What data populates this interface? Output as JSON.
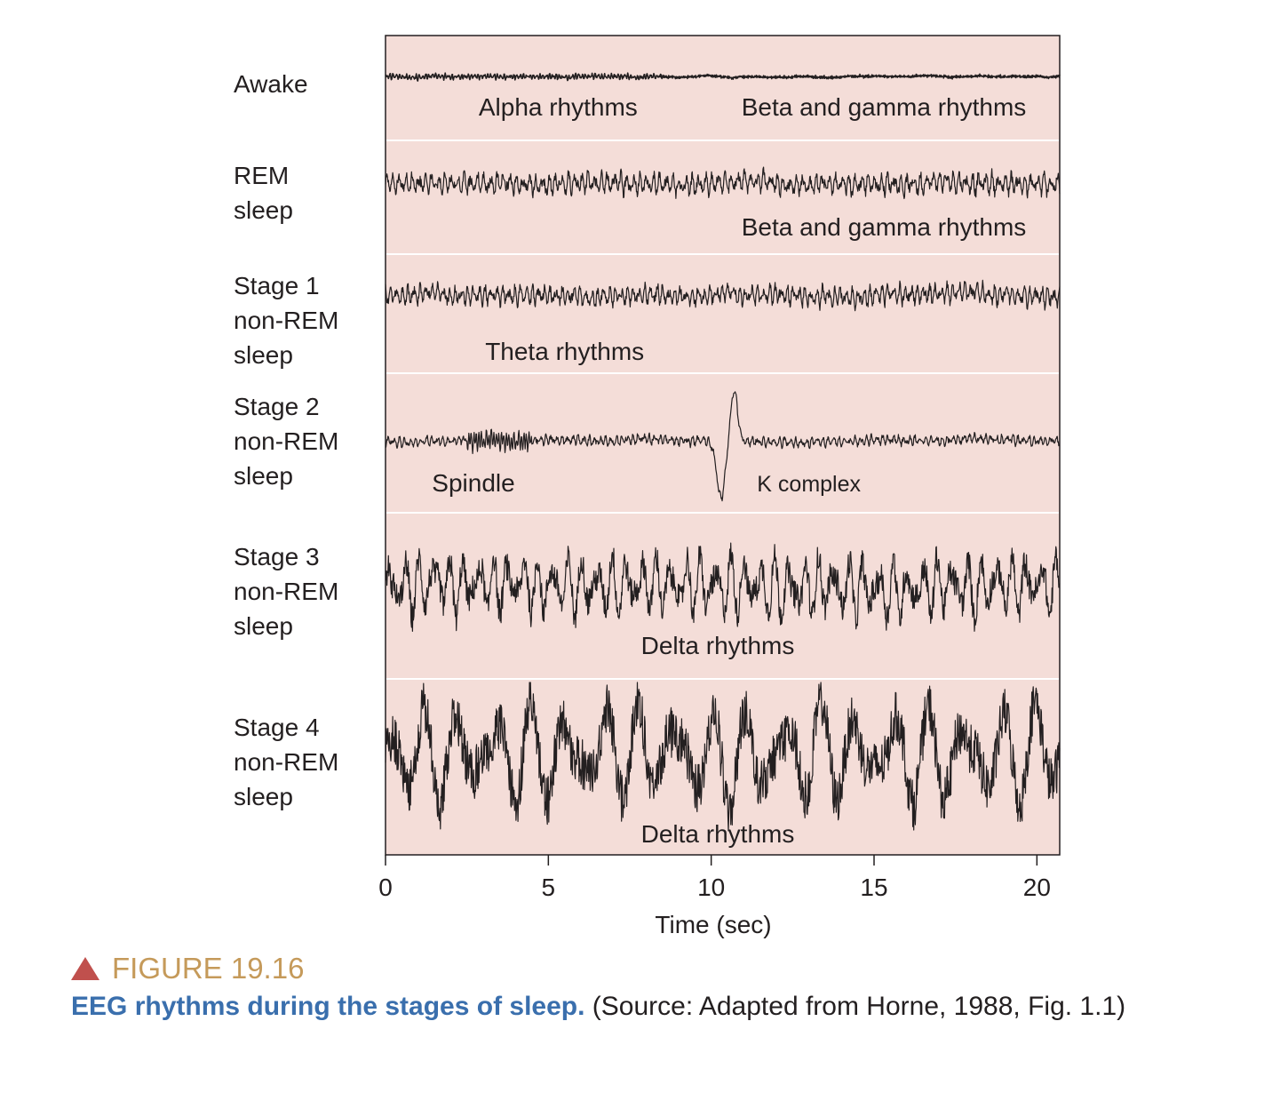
{
  "chart_data": {
    "type": "line",
    "xlabel": "Time (sec)",
    "xlim": [
      0,
      20.7
    ],
    "xticks": [
      0,
      5,
      10,
      15,
      20
    ],
    "background_color": "#f4ddd8",
    "trace_color": "#231f20",
    "series": [
      {
        "name": "Awake",
        "label_lines": [
          "Awake"
        ],
        "annotations": [
          {
            "text": "Alpha rhythms",
            "x": 5.3
          },
          {
            "text": "Beta and gamma rhythms",
            "x": 15.3
          }
        ],
        "segments": [
          {
            "from": 0,
            "to": 8.5,
            "freq_hz": 10,
            "amp": 0.3
          },
          {
            "from": 8.5,
            "to": 20.7,
            "freq_hz": 22,
            "amp": 0.15
          }
        ]
      },
      {
        "name": "REM sleep",
        "label_lines": [
          "REM",
          "sleep"
        ],
        "annotations": [
          {
            "text": "Beta and gamma rhythms",
            "x": 15.3
          }
        ],
        "segments": [
          {
            "from": 0,
            "to": 20.7,
            "freq_hz": 5,
            "amp": 0.55
          }
        ]
      },
      {
        "name": "Stage 1 non-REM sleep",
        "label_lines": [
          "Stage 1",
          "non-REM",
          "sleep"
        ],
        "annotations": [
          {
            "text": "Theta rhythms",
            "x": 5.5
          }
        ],
        "segments": [
          {
            "from": 0,
            "to": 20.7,
            "freq_hz": 5.5,
            "amp": 0.5
          }
        ]
      },
      {
        "name": "Stage 2 non-REM sleep",
        "label_lines": [
          "Stage 2",
          "non-REM",
          "sleep"
        ],
        "annotations": [
          {
            "text": "Spindle",
            "x": 2.7
          },
          {
            "text": "K complex",
            "x": 13.0
          }
        ],
        "segments": [
          {
            "from": 0,
            "to": 20.7,
            "freq_hz": 6,
            "amp": 0.35
          }
        ],
        "events": [
          {
            "type": "spindle",
            "from": 2.5,
            "to": 4.5
          },
          {
            "type": "k-complex",
            "at": 10.4
          }
        ]
      },
      {
        "name": "Stage 3 non-REM sleep",
        "label_lines": [
          "Stage 3",
          "non-REM",
          "sleep"
        ],
        "annotations": [
          {
            "text": "Delta rhythms",
            "x": 10.2
          }
        ],
        "segments": [
          {
            "from": 0,
            "to": 20.7,
            "freq_hz": 2.2,
            "amp": 0.9
          }
        ]
      },
      {
        "name": "Stage 4 non-REM sleep",
        "label_lines": [
          "Stage 4",
          "non-REM",
          "sleep"
        ],
        "annotations": [
          {
            "text": "Delta rhythms",
            "x": 10.2
          }
        ],
        "segments": [
          {
            "from": 0,
            "to": 20.7,
            "freq_hz": 0.9,
            "amp": 1.0
          }
        ]
      }
    ]
  },
  "caption": {
    "figure_label": "FIGURE 19.16",
    "bold_text": "EEG rhythms during the stages of sleep.",
    "source_text": "(Source: Adapted from Horne, 1988, Fig. 1.1)"
  }
}
